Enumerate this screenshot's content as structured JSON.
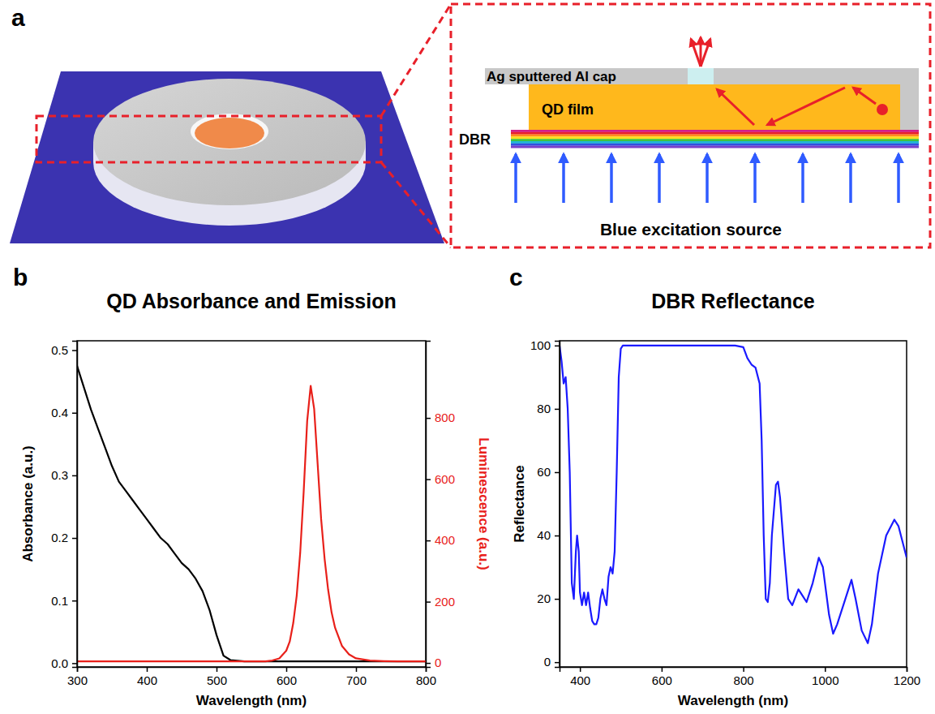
{
  "diagram": {
    "panel": "a",
    "labels": {
      "cap": "Ag sputtered Al cap",
      "film": "QD film",
      "dbr": "DBR",
      "source": "Blue excitation source"
    }
  },
  "chart_data": [
    {
      "panel": "b",
      "type": "line",
      "title": "QD Absorbance and Emission",
      "xlabel": "Wavelength (nm)",
      "ylabel": "Absorbance (a.u.)",
      "y2label": "Luminescence (a.u.)",
      "x": [
        300,
        310,
        320,
        330,
        340,
        350,
        360,
        370,
        380,
        390,
        400,
        410,
        420,
        430,
        440,
        450,
        460,
        470,
        480,
        490,
        500,
        510,
        520,
        530,
        540,
        550,
        560,
        570,
        580,
        590,
        600,
        605,
        610,
        615,
        620,
        625,
        630,
        635,
        640,
        645,
        650,
        655,
        660,
        665,
        670,
        680,
        690,
        700,
        720,
        740,
        760,
        780,
        800
      ],
      "series": [
        {
          "color": "#000000",
          "values": [
            0.475,
            0.44,
            0.405,
            0.375,
            0.345,
            0.315,
            0.29,
            0.275,
            0.26,
            0.245,
            0.23,
            0.215,
            0.2,
            0.19,
            0.175,
            0.16,
            0.15,
            0.135,
            0.115,
            0.085,
            0.045,
            0.012,
            0.005,
            0.004,
            0.003,
            0.003,
            0.003,
            0.003,
            0.003,
            0.003,
            0.003,
            0.003,
            0.003,
            0.003,
            0.003,
            0.003,
            0.003,
            0.003,
            0.003,
            0.003,
            0.003,
            0.003,
            0.003,
            0.003,
            0.003,
            0.003,
            0.003,
            0.003,
            0.003,
            0.003,
            0.003,
            0.003,
            0.003
          ]
        },
        {
          "color": "#e8201a",
          "axis": "y2",
          "values": [
            5,
            5,
            5,
            5,
            5,
            5,
            5,
            5,
            5,
            5,
            5,
            5,
            5,
            5,
            5,
            5,
            5,
            5,
            5,
            5,
            5,
            5,
            5,
            5,
            5,
            5,
            5,
            5,
            8,
            15,
            40,
            70,
            130,
            220,
            360,
            560,
            790,
            905,
            830,
            650,
            470,
            340,
            240,
            165,
            115,
            55,
            28,
            15,
            8,
            6,
            5,
            5,
            5
          ]
        }
      ],
      "xlim": [
        300,
        800
      ],
      "xticks": [
        300,
        400,
        500,
        600,
        700,
        800
      ],
      "ylim": [
        -0.006,
        0.515
      ],
      "yticks": [
        {
          "value": 0,
          "label": "0.0"
        },
        0.1,
        0.2,
        0.3,
        0.4,
        0.5
      ],
      "y2lim": [
        -13,
        1052
      ],
      "y2ticks": [
        0,
        200,
        400,
        600,
        800
      ]
    },
    {
      "panel": "c",
      "type": "line",
      "title": "DBR Reflectance",
      "xlabel": "Wavelength (nm)",
      "ylabel": "Reflectance",
      "x": [
        350,
        355,
        360,
        365,
        370,
        375,
        380,
        385,
        390,
        393,
        397,
        400,
        405,
        410,
        415,
        420,
        425,
        430,
        435,
        440,
        445,
        450,
        455,
        460,
        465,
        470,
        475,
        480,
        485,
        490,
        495,
        500,
        505,
        520,
        560,
        600,
        650,
        700,
        750,
        780,
        800,
        810,
        820,
        830,
        840,
        845,
        850,
        855,
        860,
        865,
        870,
        880,
        885,
        890,
        900,
        910,
        920,
        935,
        945,
        955,
        970,
        985,
        995,
        1010,
        1020,
        1030,
        1050,
        1065,
        1075,
        1090,
        1105,
        1115,
        1130,
        1150,
        1170,
        1180,
        1190,
        1200
      ],
      "series": [
        {
          "color": "#1a1aff",
          "values": [
            100,
            95,
            88,
            90,
            80,
            60,
            25,
            20,
            35,
            40,
            35,
            22,
            18,
            22,
            18,
            22,
            17,
            13,
            12,
            12,
            14,
            20,
            23,
            20,
            18,
            27,
            30,
            28,
            35,
            60,
            90,
            99,
            100,
            100,
            100,
            100,
            100,
            100,
            100,
            100,
            99.5,
            96,
            94,
            93,
            88,
            70,
            40,
            20,
            19,
            25,
            40,
            56,
            57,
            52,
            35,
            20,
            18,
            23,
            21,
            19,
            25,
            33,
            30,
            15,
            9,
            12,
            20,
            26,
            20,
            10,
            6,
            12,
            28,
            40,
            45,
            43,
            38,
            33
          ]
        }
      ],
      "xlim": [
        350,
        1200
      ],
      "xticks": [
        400,
        600,
        800,
        1000,
        1200
      ],
      "ylim": [
        -1.5,
        101.5
      ],
      "yticks": [
        0,
        20,
        40,
        60,
        80,
        100
      ]
    }
  ]
}
